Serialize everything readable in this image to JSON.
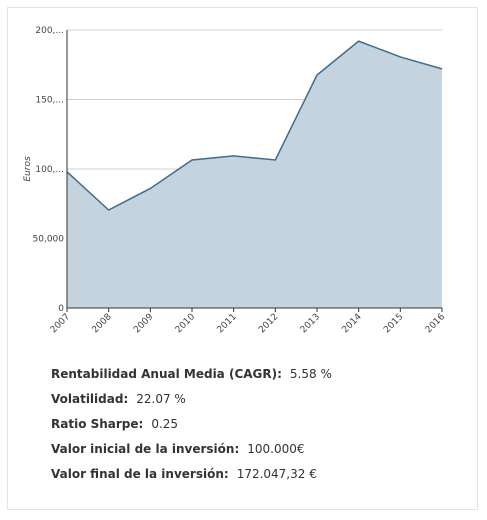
{
  "chart_data": {
    "type": "area",
    "y_label": "Euros",
    "categories": [
      "2007",
      "2008",
      "2009",
      "2010",
      "2011",
      "2012",
      "2013",
      "2014",
      "2015",
      "2016"
    ],
    "values": [
      98000,
      70500,
      86000,
      106500,
      109400,
      106500,
      167600,
      192000,
      180600,
      172047
    ],
    "color": "#c5d3df",
    "line_color": "#3d6d91",
    "ylim": [
      0,
      200000
    ],
    "yticks": [
      0,
      {
        "value": 50000,
        "label": "50,000"
      },
      {
        "value": 100000,
        "label": "100,..."
      },
      {
        "value": 150000,
        "label": "150,..."
      },
      {
        "value": 200000,
        "label": "200,..."
      }
    ],
    "grid": true
  },
  "stats": [
    {
      "label": "Rentabilidad Anual Media (CAGR):",
      "value": "5.58 %"
    },
    {
      "label": "Volatilidad:",
      "value": "22.07 %"
    },
    {
      "label": "Ratio Sharpe:",
      "value": "0.25"
    },
    {
      "label": "Valor inicial de la inversión:",
      "value": "100.000€"
    },
    {
      "label": "Valor final de la inversión:",
      "value": "172.047,32 €"
    }
  ]
}
